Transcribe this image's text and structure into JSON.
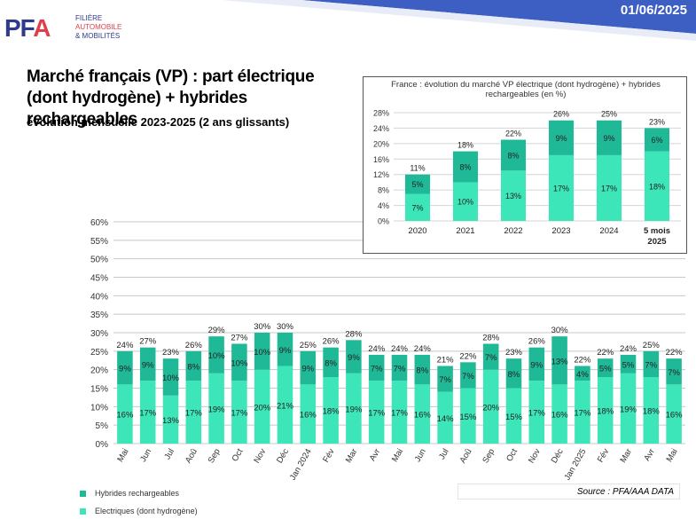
{
  "header": {
    "date": "01/06/2025",
    "logo_mark_pf": "PF",
    "logo_mark_a": "A",
    "logo_line1": "FILIÈRE",
    "logo_line2": "AUTOMOBILE",
    "logo_line3": "& MOBILITÉS"
  },
  "title": "Marché français (VP) : part électrique (dont hydrogène) + hybrides rechargeables",
  "subtitle": "évolution mensuelle 2023-2025 (2 ans glissants)",
  "source": "Source : PFA/AAA DATA",
  "legend": {
    "hybrid": "Hybrides rechargeables",
    "electric": "Electriques (dont hydrogène)"
  },
  "colors": {
    "electric": "#3de6b8",
    "hybrid": "#1fb997",
    "banner": "#3d5fc4",
    "grid": "#c8c8c8"
  },
  "chart_data": [
    {
      "type": "bar",
      "stacked": true,
      "title": "",
      "categories": [
        "Mai",
        "Jun",
        "Jul",
        "Aoû",
        "Sep",
        "Oct",
        "Nov",
        "Déc",
        "Jan 2024",
        "Fév",
        "Mar",
        "Avr",
        "Mai",
        "Jun",
        "Jul",
        "Aoû",
        "Sep",
        "Oct",
        "Nov",
        "Déc",
        "Jan 2025",
        "Fév",
        "Mar",
        "Avr",
        "Mai"
      ],
      "series": [
        {
          "name": "Electriques (dont hydrogène)",
          "values": [
            16,
            17,
            13,
            17,
            19,
            17,
            20,
            21,
            16,
            18,
            19,
            17,
            17,
            16,
            14,
            15,
            20,
            15,
            17,
            16,
            17,
            18,
            19,
            18,
            16
          ]
        },
        {
          "name": "Hybrides rechargeables",
          "values": [
            9,
            9,
            10,
            8,
            10,
            10,
            10,
            9,
            9,
            8,
            9,
            7,
            7,
            8,
            7,
            7,
            7,
            8,
            9,
            13,
            4,
            5,
            5,
            7,
            7
          ]
        }
      ],
      "totals": [
        24,
        27,
        23,
        26,
        29,
        27,
        30,
        30,
        25,
        26,
        28,
        24,
        24,
        24,
        21,
        22,
        28,
        23,
        26,
        30,
        22,
        22,
        24,
        25,
        22
      ],
      "ylim": [
        0,
        60
      ],
      "yticks": [
        0,
        5,
        10,
        15,
        20,
        25,
        30,
        35,
        40,
        45,
        50,
        55,
        60
      ],
      "ytick_labels": [
        "0%",
        "5%",
        "10%",
        "15%",
        "20%",
        "25%",
        "30%",
        "35%",
        "40%",
        "45%",
        "50%",
        "55%",
        "60%"
      ],
      "grid": true,
      "legend": "bottom-left"
    },
    {
      "type": "bar",
      "stacked": true,
      "title": "France : évolution du marché VP électrique (dont hydrogène) + hybrides rechargeables (en %)",
      "categories": [
        "2020",
        "2021",
        "2022",
        "2023",
        "2024",
        "5 mois 2025"
      ],
      "series": [
        {
          "name": "Electriques (dont hydrogène)",
          "values": [
            7,
            10,
            13,
            17,
            17,
            18
          ]
        },
        {
          "name": "Hybrides rechargeables",
          "values": [
            5,
            8,
            8,
            9,
            9,
            6
          ]
        }
      ],
      "totals": [
        11,
        18,
        22,
        26,
        25,
        23
      ],
      "ylim": [
        0,
        28
      ],
      "yticks": [
        0,
        4,
        8,
        12,
        16,
        20,
        24,
        28
      ],
      "ytick_labels": [
        "0%",
        "4%",
        "8%",
        "12%",
        "16%",
        "20%",
        "24%",
        "28%"
      ],
      "grid": true
    }
  ]
}
